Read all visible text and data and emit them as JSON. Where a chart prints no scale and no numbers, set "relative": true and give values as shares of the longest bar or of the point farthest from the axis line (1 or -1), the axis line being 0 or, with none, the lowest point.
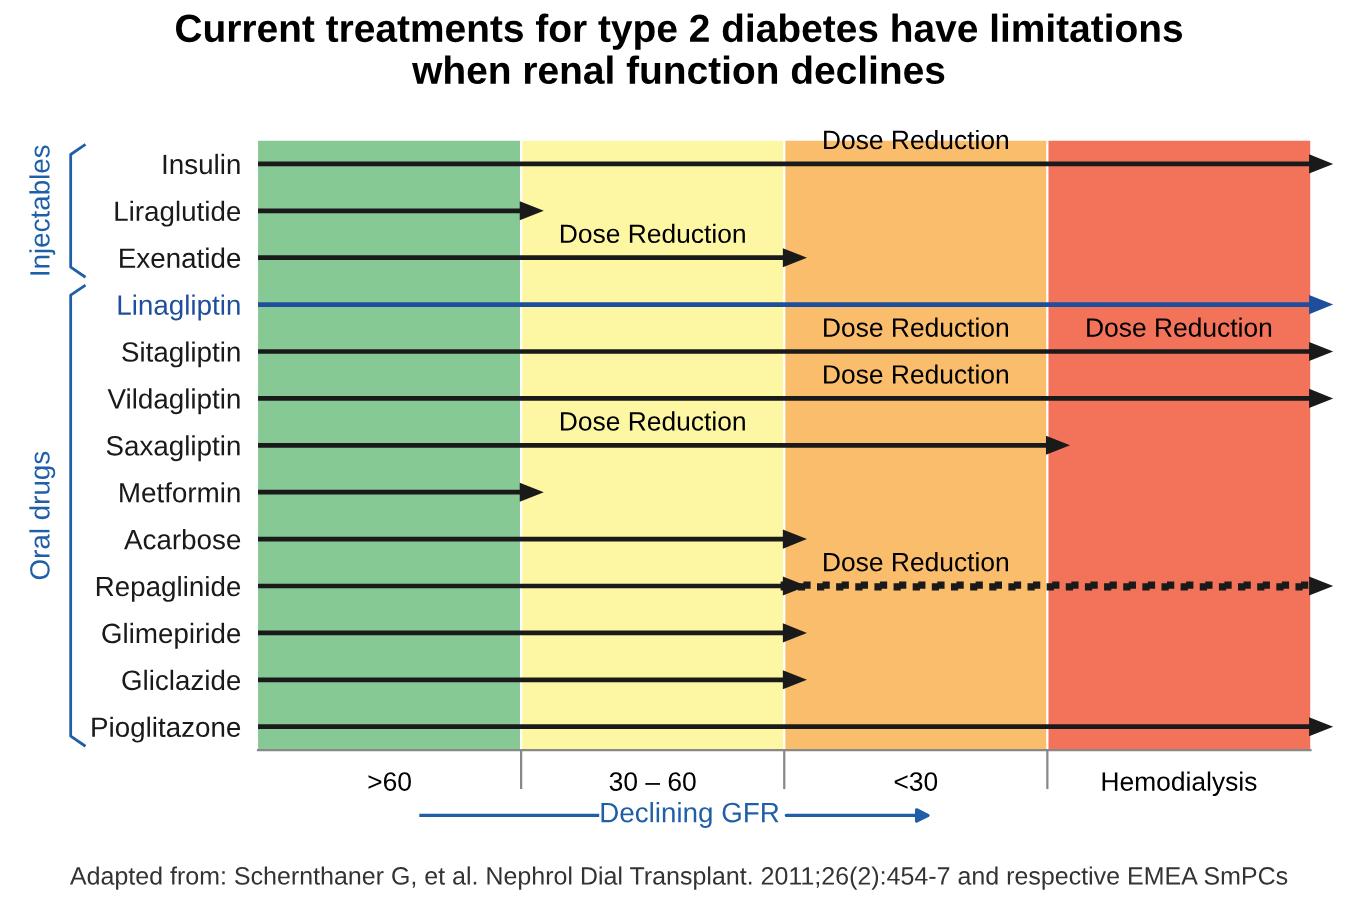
{
  "chart_data": {
    "type": "bar",
    "orientation": "horizontal",
    "stacked": true,
    "relative": true,
    "title": "Current treatments for type 2 diabetes have limitations\nwhen renal function declines",
    "xlabel": "Declining GFR",
    "categories": [
      "Insulin",
      "Liraglutide",
      "Exenatide",
      "Linagliptin",
      "Sitagliptin",
      "Vildagliptin",
      "Saxagliptin",
      "Metformin",
      "Acarbose",
      "Repaglinide",
      "Glimepiride",
      "Gliclazide",
      "Pioglitazone"
    ],
    "series": [
      {
        "colors": [
          "#1a1a1a",
          "#1a1a1a",
          "#1a1a1a",
          "#1f4e9c",
          "#1a1a1a",
          "#1a1a1a",
          "#1a1a1a",
          "#1a1a1a",
          "#1a1a1a",
          "#1a1a1a",
          "#1a1a1a",
          "#1a1a1a",
          "#1a1a1a"
        ],
        "values": [
          1,
          0.25,
          0.5,
          1,
          1,
          1,
          0.75,
          0.25,
          0.5,
          0.5,
          0.5,
          0.5,
          1
        ]
      },
      {
        "color": "#1a1a1a",
        "line_style": "dotted",
        "values": [
          null,
          null,
          null,
          null,
          null,
          null,
          null,
          null,
          null,
          0.5,
          null,
          null,
          null
        ]
      }
    ],
    "bands": [
      {
        "axis": "x",
        "from": 0,
        "to": 0.25,
        "color": "#86c994",
        "label": ">60"
      },
      {
        "axis": "x",
        "from": 0.25,
        "to": 0.5,
        "color": "#fdf6a3",
        "label": "30 – 60"
      },
      {
        "axis": "x",
        "from": 0.5,
        "to": 0.75,
        "color": "#f9bd6c",
        "label": "<30"
      },
      {
        "axis": "x",
        "from": 0.75,
        "to": 1,
        "color": "#f2725a",
        "label": "Hemodialysis"
      }
    ],
    "annotations": [
      "Dose Reduction",
      "Dose Reduction",
      "Dose Reduction",
      "Dose Reduction",
      "Dose Reduction",
      "Dose Reduction",
      "Dose Reduction",
      "Injectables",
      "Oral drugs",
      "Adapted from: Schernthaner G, et al. Nephrol Dial Transplant. 2011;26(2):454-7 and respective EMEA SmPCs"
    ],
    "grid": false
  }
}
